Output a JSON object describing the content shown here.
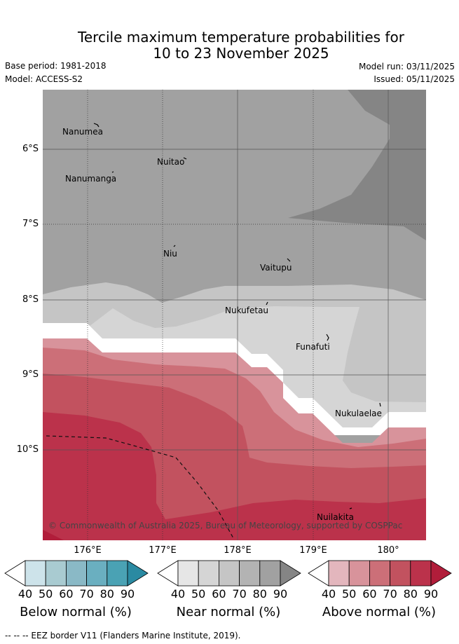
{
  "header": {
    "title_line1": "Tercile maximum temperature probabilities for",
    "title_line2": "10 to 23 November 2025",
    "base_period": "Base period: 1981-2018",
    "model": "Model: ACCESS-S2",
    "model_run": "Model run: 03/11/2025",
    "issued": "Issued: 05/11/2025"
  },
  "map": {
    "latitude_labels": [
      "6°S",
      "7°S",
      "8°S",
      "9°S",
      "10°S"
    ],
    "longitude_labels": [
      "176°E",
      "177°E",
      "178°E",
      "179°E",
      "180°"
    ],
    "islands": [
      "Nanumea",
      "Nuitao",
      "Nanumanga",
      "Niu",
      "Vaitupu",
      "Nukufetau",
      "Funafuti",
      "Nukulaelae",
      "Nuilakita"
    ],
    "credit": "© Commonwealth of Australia 2025, Bureau of Meteorology, supported by COSPPac"
  },
  "legend": {
    "ticks": [
      "40",
      "50",
      "60",
      "70",
      "80",
      "90"
    ],
    "below": {
      "title": "Below normal (%)",
      "colors": [
        "#ffffff",
        "#cde3ea",
        "#a9cbd1",
        "#8ab9c6",
        "#6aafc0",
        "#4aa2b4",
        "#2a8aa2"
      ]
    },
    "near": {
      "title": "Near normal (%)",
      "colors": [
        "#ffffff",
        "#e6e6e6",
        "#d5d5d5",
        "#c5c5c5",
        "#b3b3b3",
        "#a1a1a1",
        "#858585"
      ]
    },
    "above": {
      "title": "Above normal (%)",
      "colors": [
        "#ffffff",
        "#e3b6bd",
        "#d8939b",
        "#cc6f78",
        "#c2525f",
        "#bb324b",
        "#b11d3a"
      ]
    }
  },
  "footer": {
    "eez_note": "-- -- -- EEZ border V11 (Flanders Marine Institute, 2019)."
  }
}
